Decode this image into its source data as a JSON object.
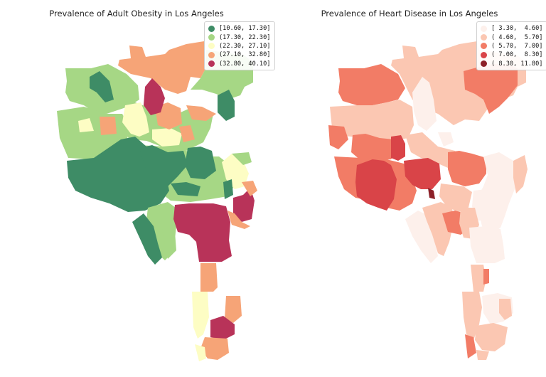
{
  "maps": [
    {
      "title": "Prevalence of Adult Obesity in Los Angeles",
      "legend": [
        {
          "label": "[10.60, 17.30]",
          "color": "#3e8c66"
        },
        {
          "label": "(17.30, 22.30]",
          "color": "#a6d785"
        },
        {
          "label": "(22.30, 27.10]",
          "color": "#fdfdc4"
        },
        {
          "label": "(27.10, 32.80]",
          "color": "#f6a477"
        },
        {
          "label": "(32.80, 40.10]",
          "color": "#b83359"
        }
      ]
    },
    {
      "title": "Prevalence of Heart Disease in Los Angeles",
      "legend": [
        {
          "label": "[ 3.30,  4.60]",
          "color": "#fdf0eb"
        },
        {
          "label": "( 4.60,  5.70]",
          "color": "#fbc7b2"
        },
        {
          "label": "( 5.70,  7.00]",
          "color": "#f27c66"
        },
        {
          "label": "( 7.00,  8.30]",
          "color": "#d94448"
        },
        {
          "label": "( 8.30, 11.80]",
          "color": "#8c2028"
        }
      ]
    }
  ]
}
